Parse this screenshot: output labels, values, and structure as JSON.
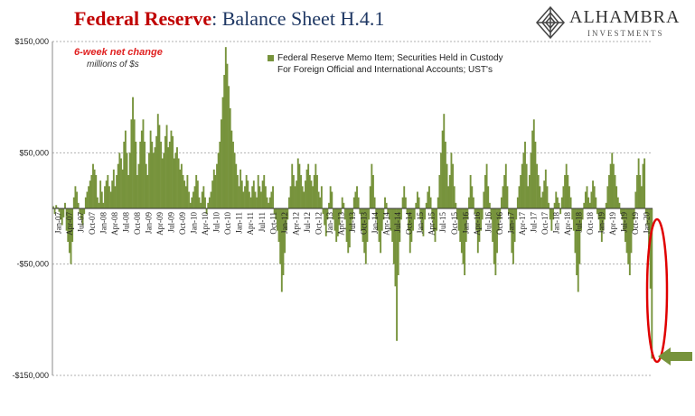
{
  "title": {
    "bold": "Federal Reserve",
    "rest": ": Balance Sheet H.4.1"
  },
  "logo": {
    "name": "ALHAMBRA",
    "sub": "INVESTMENTS",
    "icon": "diamond-logo-icon"
  },
  "note": {
    "line1": "6-week net change",
    "line2": "millions of $s"
  },
  "colors": {
    "bar": "#77933c",
    "highlight": "#e00000",
    "arrow": "#77933c"
  },
  "chart_data": {
    "type": "bar",
    "ylim": [
      -150000,
      150000
    ],
    "yticks": [
      150000,
      50000,
      -50000,
      -150000
    ],
    "ytick_labels": [
      "$150,000",
      "$50,000",
      "-$50,000",
      "-$150,000"
    ],
    "grid": true,
    "legend_position": "top-center",
    "xtick_labels": [
      "Jan-07",
      "Apr-07",
      "Jul-07",
      "Oct-07",
      "Jan-08",
      "Apr-08",
      "Jul-08",
      "Oct-08",
      "Jan-09",
      "Apr-09",
      "Jul-09",
      "Oct-09",
      "Jan-10",
      "Apr-10",
      "Jul-10",
      "Oct-10",
      "Jan-11",
      "Apr-11",
      "Jul-11",
      "Oct-11",
      "Jan-12",
      "Apr-12",
      "Jul-12",
      "Oct-12",
      "Jan-13",
      "Apr-13",
      "Jul-13",
      "Oct-13",
      "Jan-14",
      "Apr-14",
      "Jul-14",
      "Oct-14",
      "Jan-15",
      "Apr-15",
      "Jul-15",
      "Oct-15",
      "Jan-16",
      "Apr-16",
      "Jul-16",
      "Oct-16",
      "Jan-17",
      "Apr-17",
      "Jul-17",
      "Oct-17",
      "Jan-18",
      "Apr-18",
      "Jul-18",
      "Oct-18",
      "Jan-19",
      "Apr-19",
      "Jul-19",
      "Oct-19",
      "Jan-20"
    ],
    "series": [
      {
        "name": "Federal Reserve Memo Item; Securities Held in Custody For Foreign Official and International Accounts; UST's",
        "values": [
          2000,
          -5000,
          3000,
          1000,
          -3000,
          -10000,
          -15000,
          -8000,
          5000,
          -20000,
          -30000,
          -40000,
          -50000,
          -30000,
          10000,
          20000,
          15000,
          5000,
          -5000,
          -10000,
          -15000,
          -5000,
          10000,
          15000,
          20000,
          25000,
          30000,
          40000,
          35000,
          30000,
          10000,
          5000,
          25000,
          15000,
          5000,
          20000,
          25000,
          30000,
          20000,
          15000,
          25000,
          35000,
          20000,
          30000,
          40000,
          50000,
          45000,
          35000,
          60000,
          70000,
          50000,
          30000,
          50000,
          80000,
          100000,
          80000,
          60000,
          30000,
          40000,
          60000,
          70000,
          80000,
          60000,
          40000,
          30000,
          50000,
          70000,
          60000,
          50000,
          55000,
          65000,
          85000,
          75000,
          60000,
          45000,
          50000,
          65000,
          75000,
          55000,
          60000,
          70000,
          65000,
          45000,
          50000,
          55000,
          45000,
          35000,
          40000,
          30000,
          25000,
          20000,
          30000,
          15000,
          5000,
          10000,
          15000,
          20000,
          30000,
          25000,
          10000,
          5000,
          15000,
          20000,
          10000,
          -5000,
          5000,
          10000,
          15000,
          25000,
          35000,
          30000,
          40000,
          50000,
          60000,
          80000,
          100000,
          120000,
          145000,
          130000,
          110000,
          90000,
          70000,
          60000,
          50000,
          40000,
          30000,
          20000,
          35000,
          25000,
          15000,
          20000,
          30000,
          25000,
          15000,
          10000,
          20000,
          25000,
          15000,
          10000,
          30000,
          20000,
          15000,
          25000,
          30000,
          20000,
          10000,
          5000,
          10000,
          15000,
          20000,
          -5000,
          -10000,
          -20000,
          -30000,
          -50000,
          -75000,
          -60000,
          -40000,
          -20000,
          -10000,
          10000,
          20000,
          40000,
          30000,
          20000,
          25000,
          45000,
          40000,
          30000,
          20000,
          15000,
          25000,
          35000,
          40000,
          30000,
          25000,
          20000,
          30000,
          40000,
          30000,
          15000,
          10000,
          20000,
          -5000,
          -15000,
          -25000,
          -10000,
          5000,
          20000,
          15000,
          -10000,
          -20000,
          -30000,
          -25000,
          -15000,
          -5000,
          10000,
          5000,
          -10000,
          -30000,
          -40000,
          -35000,
          -20000,
          -10000,
          10000,
          15000,
          20000,
          10000,
          -5000,
          -20000,
          -30000,
          -40000,
          -50000,
          -30000,
          -10000,
          20000,
          40000,
          30000,
          10000,
          -10000,
          -20000,
          -30000,
          -40000,
          -20000,
          -10000,
          10000,
          5000,
          -5000,
          -10000,
          -20000,
          -30000,
          -50000,
          -70000,
          -119000,
          -60000,
          -30000,
          -10000,
          10000,
          20000,
          10000,
          -5000,
          -20000,
          -40000,
          -30000,
          -20000,
          -10000,
          5000,
          15000,
          10000,
          -10000,
          -20000,
          -25000,
          -10000,
          5000,
          15000,
          20000,
          10000,
          -10000,
          -20000,
          -30000,
          -20000,
          10000,
          30000,
          50000,
          70000,
          85000,
          60000,
          40000,
          20000,
          30000,
          50000,
          40000,
          20000,
          5000,
          -10000,
          -20000,
          -30000,
          -40000,
          -50000,
          -60000,
          -30000,
          -10000,
          10000,
          30000,
          20000,
          10000,
          -5000,
          -20000,
          -40000,
          -30000,
          -20000,
          -10000,
          15000,
          30000,
          40000,
          20000,
          5000,
          -10000,
          -30000,
          -50000,
          -60000,
          -40000,
          -20000,
          -10000,
          10000,
          20000,
          30000,
          40000,
          20000,
          -5000,
          -20000,
          -40000,
          -50000,
          -30000,
          -10000,
          10000,
          20000,
          30000,
          40000,
          50000,
          60000,
          40000,
          20000,
          30000,
          50000,
          70000,
          80000,
          60000,
          40000,
          30000,
          20000,
          10000,
          15000,
          25000,
          35000,
          20000,
          5000,
          -10000,
          -20000,
          -10000,
          5000,
          15000,
          10000,
          5000,
          -5000,
          10000,
          20000,
          30000,
          40000,
          30000,
          20000,
          10000,
          -10000,
          -20000,
          -40000,
          -60000,
          -75000,
          -50000,
          -20000,
          -10000,
          5000,
          15000,
          20000,
          10000,
          5000,
          15000,
          25000,
          20000,
          10000,
          -5000,
          -10000,
          -20000,
          -30000,
          -20000,
          -10000,
          5000,
          20000,
          30000,
          40000,
          50000,
          40000,
          30000,
          20000,
          10000,
          5000,
          -5000,
          -10000,
          -20000,
          -30000,
          -40000,
          -50000,
          -60000,
          -40000,
          -20000,
          -10000,
          15000,
          30000,
          45000,
          30000,
          20000,
          40000,
          45000,
          -5000,
          -15000,
          -40000,
          -72000,
          -135000
        ]
      }
    ]
  }
}
